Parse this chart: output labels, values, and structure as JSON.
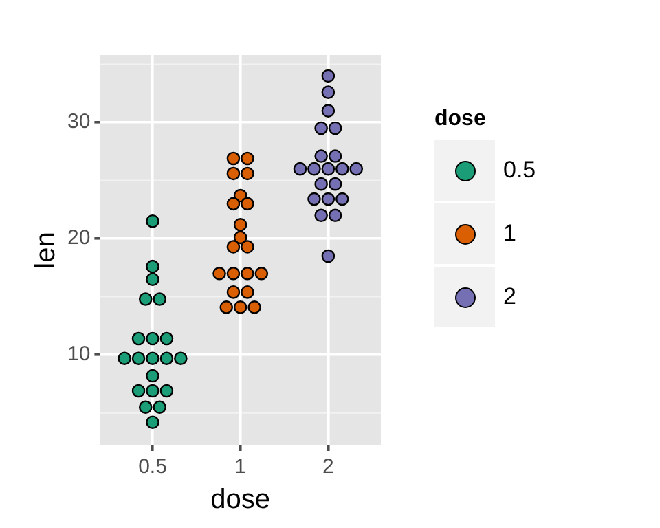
{
  "chart_data": {
    "type": "scatter",
    "xlabel": "dose",
    "ylabel": "len",
    "legend_title": "dose",
    "categories": [
      "0.5",
      "1",
      "2"
    ],
    "series": [
      {
        "name": "0.5",
        "color": "#1b9e77",
        "x": [
          "0.5",
          "0.5",
          "0.5",
          "0.5",
          "0.5",
          "0.5",
          "0.5",
          "0.5",
          "0.5",
          "0.5",
          "0.5",
          "0.5",
          "0.5",
          "0.5",
          "0.5",
          "0.5",
          "0.5",
          "0.5",
          "0.5",
          "0.5"
        ],
        "values": [
          21.5,
          17.6,
          16.5,
          14.8,
          14.8,
          11.4,
          11.4,
          11.4,
          9.7,
          9.7,
          9.7,
          9.7,
          9.7,
          8.2,
          6.9,
          6.9,
          6.9,
          5.5,
          5.5,
          4.2
        ]
      },
      {
        "name": "1",
        "color": "#d95f02",
        "x": [
          "1",
          "1",
          "1",
          "1",
          "1",
          "1",
          "1",
          "1",
          "1",
          "1",
          "1",
          "1",
          "1",
          "1",
          "1",
          "1",
          "1",
          "1",
          "1",
          "1"
        ],
        "values": [
          26.9,
          26.9,
          25.6,
          25.6,
          23.7,
          23.0,
          23.0,
          21.2,
          20.1,
          19.3,
          19.3,
          17.0,
          17.0,
          17.0,
          17.0,
          15.4,
          15.4,
          14.1,
          14.1,
          14.1
        ]
      },
      {
        "name": "2",
        "color": "#7570b3",
        "x": [
          "2",
          "2",
          "2",
          "2",
          "2",
          "2",
          "2",
          "2",
          "2",
          "2",
          "2",
          "2",
          "2",
          "2",
          "2",
          "2",
          "2",
          "2",
          "2",
          "2"
        ],
        "values": [
          34.0,
          32.6,
          31.0,
          29.5,
          29.5,
          27.1,
          27.1,
          26.0,
          26.0,
          26.0,
          26.0,
          26.0,
          24.7,
          24.7,
          23.4,
          23.4,
          23.4,
          22.0,
          22.0,
          18.5
        ]
      }
    ],
    "ylim": [
      2.2,
      35.8
    ],
    "yticks": [
      10,
      20,
      30
    ],
    "grid": true,
    "legend": "right",
    "marker": "circle"
  }
}
